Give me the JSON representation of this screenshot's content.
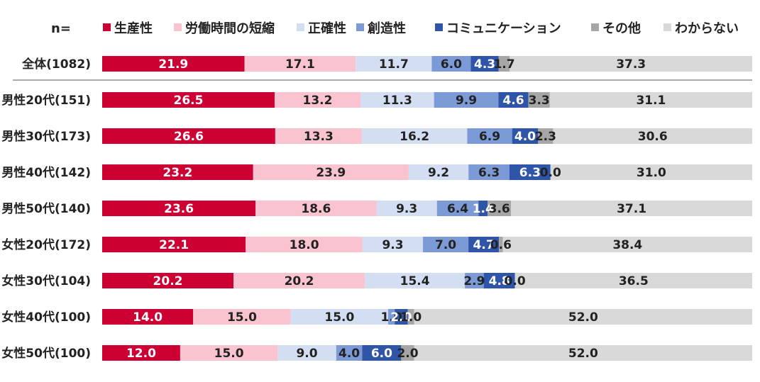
{
  "chart_data": {
    "type": "bar",
    "orientation": "horizontal",
    "stacked": true,
    "percent_stacked": true,
    "n_label": "n=",
    "categories": [
      "全体(1082)",
      "男性20代(151)",
      "男性30代(173)",
      "男性40代(142)",
      "男性50代(140)",
      "女性20代(172)",
      "女性30代(104)",
      "女性40代(100)",
      "女性50代(100)"
    ],
    "series": [
      {
        "name": "生産性",
        "color": "#cc0033",
        "label_color": "#ffffff",
        "values": [
          21.9,
          26.5,
          26.6,
          23.2,
          23.6,
          22.1,
          20.2,
          14.0,
          12.0
        ]
      },
      {
        "name": "労働時間の短縮",
        "color": "#f9c4d0",
        "label_color": "#222222",
        "values": [
          17.1,
          13.2,
          13.3,
          23.9,
          18.6,
          18.0,
          20.2,
          15.0,
          15.0
        ]
      },
      {
        "name": "正確性",
        "color": "#d4def2",
        "label_color": "#222222",
        "values": [
          11.7,
          11.3,
          16.2,
          9.2,
          9.3,
          9.3,
          15.4,
          15.0,
          9.0
        ]
      },
      {
        "name": "創造性",
        "color": "#7c9bd6",
        "label_color": "#222222",
        "values": [
          6.0,
          9.9,
          6.9,
          6.3,
          6.4,
          7.0,
          2.9,
          1.0,
          4.0
        ]
      },
      {
        "name": "コミュニケーション",
        "color": "#2e55a7",
        "label_color": "#ffffff",
        "values": [
          4.3,
          4.6,
          4.0,
          6.3,
          1.4,
          4.7,
          4.8,
          2.0,
          6.0
        ]
      },
      {
        "name": "その他",
        "color": "#a6a6a6",
        "label_color": "#222222",
        "values": [
          1.7,
          3.3,
          2.3,
          0.0,
          3.6,
          0.6,
          0.0,
          1.0,
          2.0
        ]
      },
      {
        "name": "わからない",
        "color": "#d9d9d9",
        "label_color": "#222222",
        "values": [
          37.3,
          31.1,
          30.6,
          31.0,
          37.1,
          38.4,
          36.5,
          52.0,
          52.0
        ]
      }
    ],
    "xlim": [
      0,
      100
    ],
    "legend_position": "top",
    "grid": false,
    "value_format": "0.0"
  }
}
